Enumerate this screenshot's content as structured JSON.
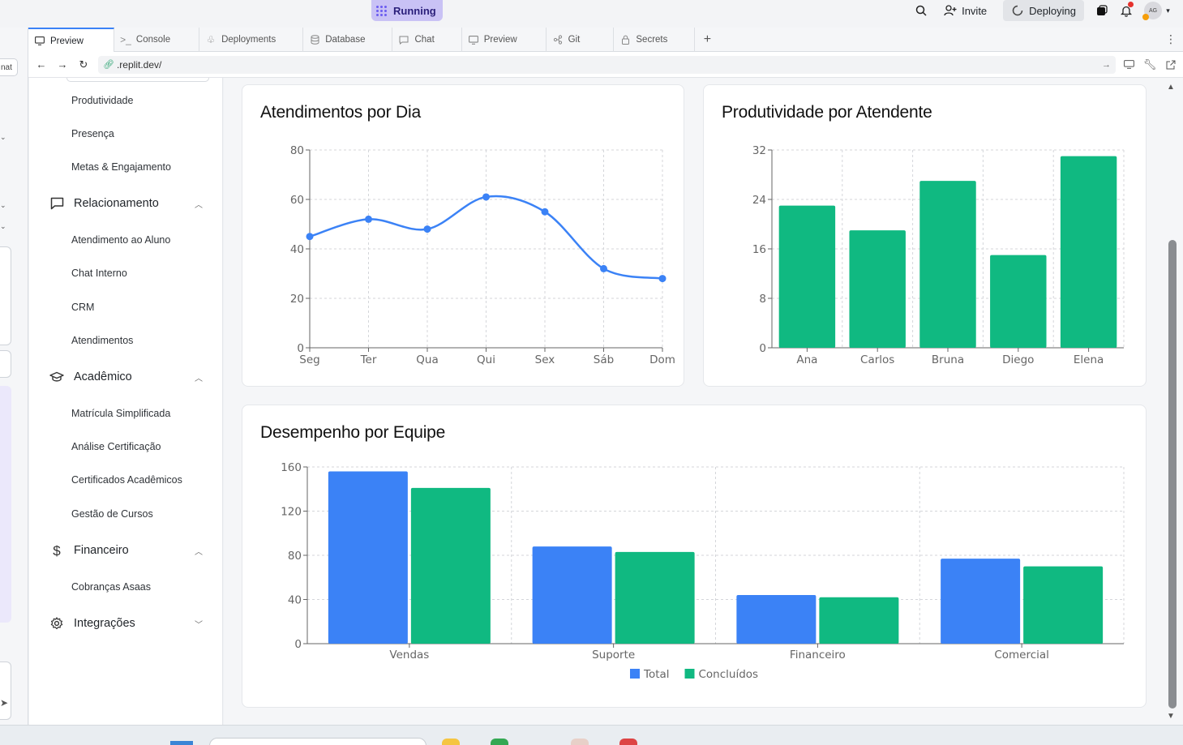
{
  "topbar": {
    "running_label": "Running",
    "invite_label": "Invite",
    "deploying_label": "Deploying",
    "avatar_initials": "AG"
  },
  "left_panel": {
    "partial_label": "nat"
  },
  "tabs": [
    {
      "label": "Preview",
      "icon": "monitor-icon",
      "active": true
    },
    {
      "label": "Console",
      "icon": "terminal-icon"
    },
    {
      "label": "Deployments",
      "icon": "deploy-icon"
    },
    {
      "label": "Database",
      "icon": "database-icon"
    },
    {
      "label": "Chat",
      "icon": "chat-icon"
    },
    {
      "label": "Preview",
      "icon": "monitor-icon"
    },
    {
      "label": "Git",
      "icon": "git-icon"
    },
    {
      "label": "Secrets",
      "icon": "lock-icon"
    }
  ],
  "url": {
    "value": ".replit.dev/"
  },
  "sidebar": {
    "items_top": [
      "Produtividade",
      "Presença",
      "Metas & Engajamento"
    ],
    "sections": [
      {
        "label": "Relacionamento",
        "icon": "chat-bubble-icon",
        "expanded": true,
        "items": [
          "Atendimento ao Aluno",
          "Chat Interno",
          "CRM",
          "Atendimentos"
        ]
      },
      {
        "label": "Acadêmico",
        "icon": "graduation-cap-icon",
        "expanded": true,
        "items": [
          "Matrícula Simplificada",
          "Análise Certificação",
          "Certificados Acadêmicos",
          "Gestão de Cursos"
        ]
      },
      {
        "label": "Financeiro",
        "icon": "dollar-icon",
        "expanded": true,
        "items": [
          "Cobranças Asaas"
        ]
      },
      {
        "label": "Integrações",
        "icon": "gear-icon",
        "expanded": false,
        "items": []
      }
    ]
  },
  "colors": {
    "blue": "#3b82f6",
    "green": "#10b981",
    "grid": "#d4d6da",
    "axis": "#666666"
  },
  "chart_data": [
    {
      "type": "line",
      "title": "Atendimentos por Dia",
      "categories": [
        "Seg",
        "Ter",
        "Qua",
        "Qui",
        "Sex",
        "Sáb",
        "Dom"
      ],
      "values": [
        45,
        52,
        48,
        61,
        55,
        32,
        28
      ],
      "ylim": [
        0,
        80
      ],
      "yticks": [
        0,
        20,
        40,
        60,
        80
      ],
      "grid": true,
      "color": "#3b82f6"
    },
    {
      "type": "bar",
      "title": "Produtividade por Atendente",
      "categories": [
        "Ana",
        "Carlos",
        "Bruna",
        "Diego",
        "Elena"
      ],
      "values": [
        23,
        19,
        27,
        15,
        31
      ],
      "ylim": [
        0,
        32
      ],
      "yticks": [
        0,
        8,
        16,
        24,
        32
      ],
      "grid": true,
      "color": "#10b981"
    },
    {
      "type": "bar",
      "title": "Desempenho por Equipe",
      "categories": [
        "Vendas",
        "Suporte",
        "Financeiro",
        "Comercial"
      ],
      "series": [
        {
          "name": "Total",
          "values": [
            156,
            88,
            44,
            77
          ],
          "color": "#3b82f6"
        },
        {
          "name": "Concluídos",
          "values": [
            141,
            83,
            42,
            70
          ],
          "color": "#10b981"
        }
      ],
      "ylim": [
        0,
        160
      ],
      "yticks": [
        0,
        40,
        80,
        120,
        160
      ],
      "grid": true,
      "legend": "bottom-center"
    }
  ]
}
